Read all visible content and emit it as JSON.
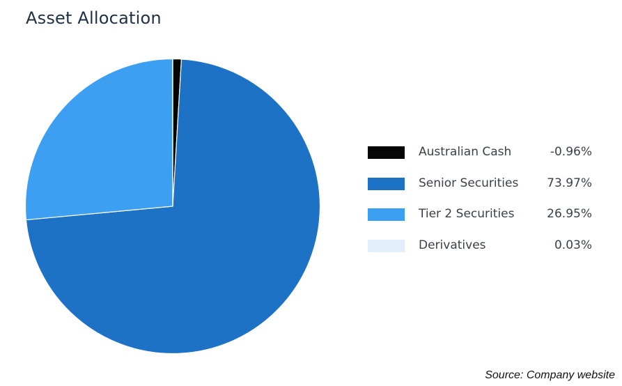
{
  "chart_data": {
    "type": "pie",
    "title": "Asset Allocation",
    "source": "Source: Company website",
    "legend_position": "right",
    "slices": [
      {
        "label": "Australian Cash",
        "value": -0.96,
        "value_label": "-0.96%",
        "color": "#050505"
      },
      {
        "label": "Senior Securities",
        "value": 73.97,
        "value_label": "73.97%",
        "color": "#1e72c6"
      },
      {
        "label": "Tier 2 Securities",
        "value": 26.95,
        "value_label": "26.95%",
        "color": "#3c9ff1"
      },
      {
        "label": "Derivatives",
        "value": 0.03,
        "value_label": "0.03%",
        "color": "#e2eef9"
      }
    ]
  }
}
